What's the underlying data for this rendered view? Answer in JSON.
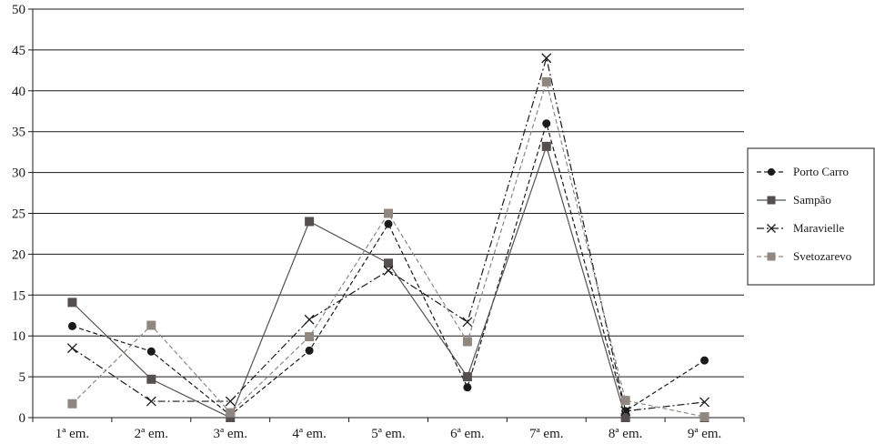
{
  "chart_data": {
    "type": "line",
    "title": "",
    "xlabel": "",
    "ylabel": "",
    "categories": [
      "1ª em.",
      "2ª em.",
      "3ª em.",
      "4ª em.",
      "5ª em.",
      "6ª em.",
      "7ª em.",
      "8ª em.",
      "9ª em."
    ],
    "ylim": [
      0,
      50
    ],
    "yticks": [
      "0",
      "5",
      "10",
      "15",
      "20",
      "25",
      "30",
      "35",
      "40",
      "45",
      "50"
    ],
    "grid": "horizontal",
    "legend_position": "right",
    "series": [
      {
        "name": "Porto Carro",
        "values": [
          11.2,
          8.1,
          0.3,
          8.2,
          23.7,
          3.7,
          36.0,
          0.8,
          7.0
        ],
        "color": "#1a1a1a",
        "marker": "circle",
        "line": "dashed"
      },
      {
        "name": "Sampão",
        "values": [
          14.1,
          4.7,
          0.0,
          24.0,
          18.9,
          5.0,
          33.2,
          0.0,
          0.0
        ],
        "color": "#555050",
        "marker": "square",
        "line": "solid"
      },
      {
        "name": "Maravielle",
        "values": [
          8.5,
          2.0,
          2.0,
          12.0,
          18.0,
          11.7,
          44.0,
          0.8,
          1.9
        ],
        "color": "#1a1a1a",
        "marker": "x",
        "line": "dash-dot"
      },
      {
        "name": "Svetozarevo",
        "values": [
          1.7,
          11.3,
          0.6,
          9.9,
          25.0,
          9.3,
          41.1,
          2.1,
          0.1
        ],
        "color": "#8f8781",
        "marker": "square",
        "line": "dashed"
      }
    ]
  }
}
